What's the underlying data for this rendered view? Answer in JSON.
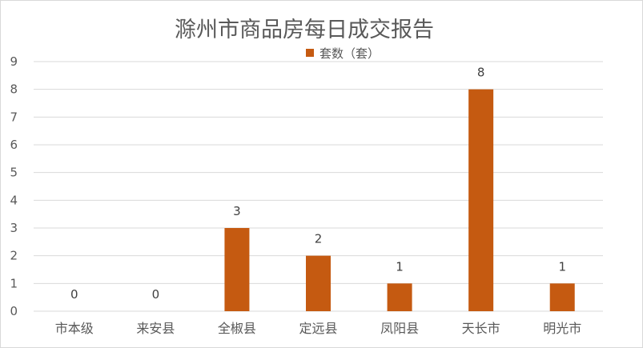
{
  "chart_data": {
    "type": "bar",
    "title": "滁州市商品房每日成交报告",
    "categories": [
      "市本级",
      "来安县",
      "全椒县",
      "定远县",
      "凤阳县",
      "天长市",
      "明光市"
    ],
    "series": [
      {
        "name": "套数（套）",
        "values": [
          0,
          0,
          3,
          2,
          1,
          8,
          1
        ],
        "color": "#c55a11"
      }
    ],
    "ylim": [
      0,
      9
    ],
    "yticks": [
      0,
      1,
      2,
      3,
      4,
      5,
      6,
      7,
      8,
      9
    ],
    "grid": true,
    "legend_position": "top-center",
    "data_labels": true,
    "xlabel": "",
    "ylabel": ""
  }
}
